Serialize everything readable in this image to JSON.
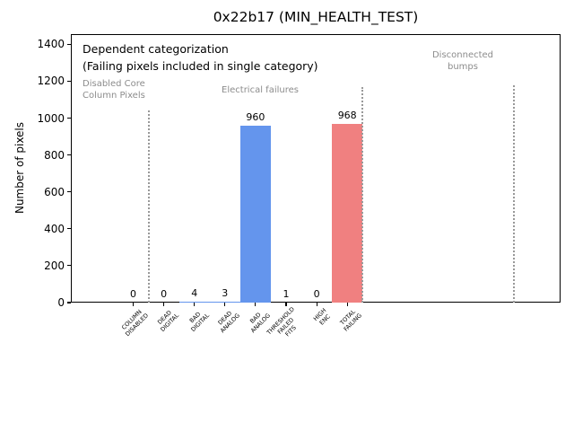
{
  "chart_data": {
    "type": "bar",
    "title": "0x22b17 (MIN_HEALTH_TEST)",
    "ylabel": "Number of pixels",
    "xlabel": "",
    "ylim": [
      0,
      1455
    ],
    "yticks": [
      0,
      200,
      400,
      600,
      800,
      1000,
      1200,
      1400
    ],
    "grid": false,
    "legend": false,
    "categories": [
      "COLUMN\nDISABLED",
      "DEAD\nDIGITAL",
      "BAD\nDIGITAL",
      "DEAD\nANALOG",
      "BAD\nANALOG",
      "THRESHOLD\nFAILED\nFITS",
      "HIGH\nENC",
      "TOTAL\nFAILING"
    ],
    "values": [
      0,
      0,
      4,
      3,
      960,
      1,
      0,
      968
    ],
    "bar_value_labels": [
      "0",
      "0",
      "4",
      "3",
      "960",
      "1",
      "0",
      "968"
    ],
    "bar_colors": [
      "#6495ed",
      "#6495ed",
      "#6495ed",
      "#6495ed",
      "#6495ed",
      "#6495ed",
      "#6495ed",
      "#f08080"
    ],
    "annotation": {
      "text": "Dependent categorization\n(Failing pixels included in single category)"
    },
    "sections": [
      {
        "label": "Disabled Core\nColumn Pixels"
      },
      {
        "label": "Electrical failures"
      },
      {
        "label": "Disconnected\nbumps"
      }
    ],
    "colors": {
      "bar_blue": "#6495ed",
      "bar_red": "#f08080",
      "section_text": "#8c8c8c",
      "separator": "#999999",
      "axis": "#000000",
      "background": "#ffffff"
    }
  }
}
